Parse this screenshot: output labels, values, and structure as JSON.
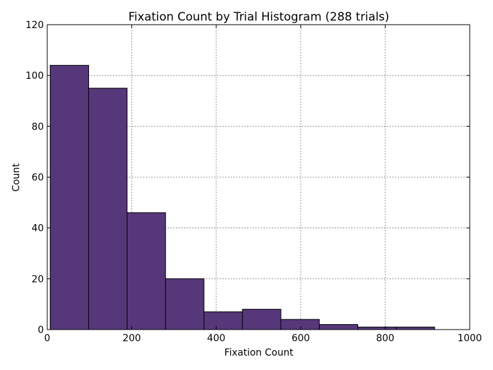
{
  "chart_data": {
    "type": "bar",
    "title": "Fixation Count by Trial Histogram (288 trials)",
    "xlabel": "Fixation Count",
    "ylabel": "Count",
    "xlim": [
      0,
      1000
    ],
    "ylim": [
      0,
      120
    ],
    "xticks": [
      0,
      200,
      400,
      600,
      800,
      1000
    ],
    "yticks": [
      0,
      20,
      40,
      60,
      80,
      100,
      120
    ],
    "grid": true,
    "bar_color": "#56387a",
    "bins": [
      {
        "x0": 7,
        "x1": 98,
        "value": 104
      },
      {
        "x0": 98,
        "x1": 189,
        "value": 95
      },
      {
        "x0": 189,
        "x1": 280,
        "value": 46
      },
      {
        "x0": 280,
        "x1": 371,
        "value": 20
      },
      {
        "x0": 371,
        "x1": 462,
        "value": 7
      },
      {
        "x0": 462,
        "x1": 553,
        "value": 8
      },
      {
        "x0": 553,
        "x1": 644,
        "value": 4
      },
      {
        "x0": 644,
        "x1": 735,
        "value": 2
      },
      {
        "x0": 735,
        "x1": 826,
        "value": 1
      },
      {
        "x0": 826,
        "x1": 917,
        "value": 1
      }
    ]
  }
}
